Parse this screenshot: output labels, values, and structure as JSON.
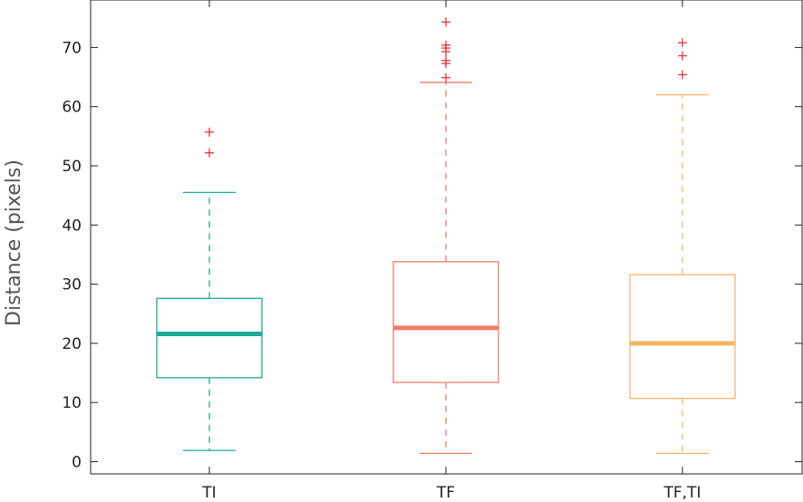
{
  "chart_data": {
    "type": "box",
    "categories": [
      "TI",
      "TF",
      "TF,TI"
    ],
    "ylabel": "Distance (pixels)",
    "xlabel": "",
    "ylim": [
      -2,
      78
    ],
    "yticks": [
      0,
      10,
      20,
      30,
      40,
      50,
      60,
      70
    ],
    "grid": false,
    "boxes": [
      {
        "category": "TI",
        "color": "#1aab97",
        "whisker_low": 1.9,
        "q1": 14.2,
        "median": 21.6,
        "q3": 27.6,
        "whisker_high": 45.5,
        "outliers": [
          52.2,
          55.7
        ]
      },
      {
        "category": "TF",
        "color": "#ee7c66",
        "whisker_low": 1.4,
        "q1": 13.4,
        "median": 22.6,
        "q3": 33.8,
        "whisker_high": 64.1,
        "outliers": [
          64.9,
          67.3,
          67.8,
          69.3,
          69.9,
          70.4,
          74.3
        ]
      },
      {
        "category": "TF,TI",
        "color": "#f8b562",
        "whisker_low": 1.4,
        "q1": 10.7,
        "median": 20.0,
        "q3": 31.6,
        "whisker_high": 62.0,
        "outliers": [
          65.4,
          68.6,
          70.8
        ]
      }
    ],
    "outlier_color": "#e8323c",
    "outlier_marker": "+"
  }
}
